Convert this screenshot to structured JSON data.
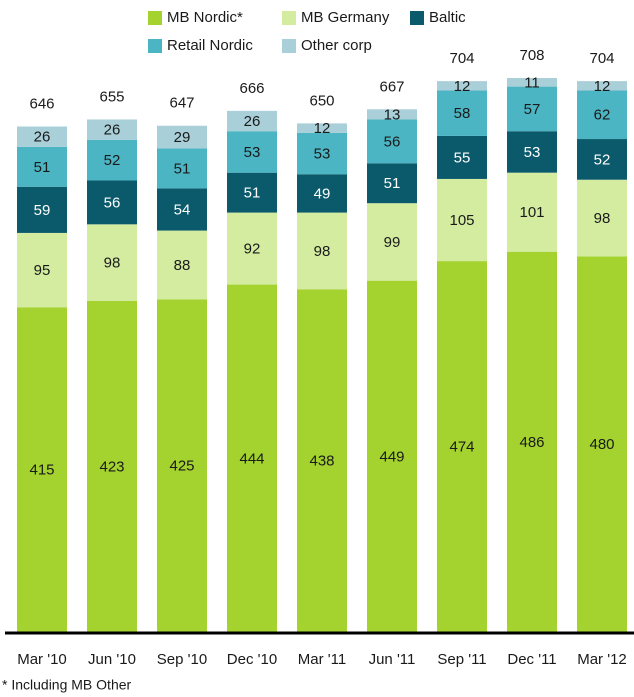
{
  "chart_data": {
    "type": "stacked-bar",
    "categories": [
      "Mar '10",
      "Jun '10",
      "Sep '10",
      "Dec '10",
      "Mar '11",
      "Jun '11",
      "Sep '11",
      "Dec '11",
      "Mar '12"
    ],
    "series": [
      {
        "name": "MB Nordic*",
        "color": "#a4d22e",
        "values": [
          415,
          423,
          425,
          444,
          438,
          449,
          474,
          486,
          480
        ]
      },
      {
        "name": "MB Germany",
        "color": "#d4eca0",
        "values": [
          95,
          98,
          88,
          92,
          98,
          99,
          105,
          101,
          98
        ]
      },
      {
        "name": "Baltic",
        "color": "#0b5a6b",
        "values": [
          59,
          56,
          54,
          51,
          49,
          51,
          55,
          53,
          52
        ]
      },
      {
        "name": "Retail Nordic",
        "color": "#4bb5c3",
        "values": [
          51,
          52,
          51,
          53,
          53,
          56,
          58,
          57,
          62
        ]
      },
      {
        "name": "Other corp",
        "color": "#a9cfd8",
        "values": [
          26,
          26,
          29,
          26,
          12,
          13,
          12,
          11,
          12
        ]
      }
    ],
    "totals": [
      646,
      655,
      647,
      666,
      650,
      667,
      704,
      708,
      704
    ],
    "footnote": "* Including MB Other"
  }
}
